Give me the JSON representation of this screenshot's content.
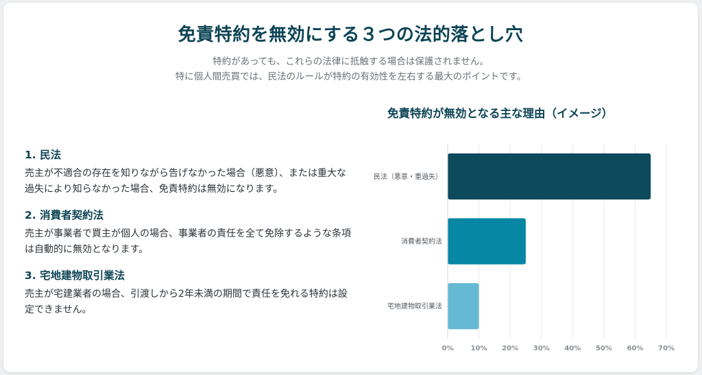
{
  "header": {
    "title": "免責特約を無効にする３つの法的落とし穴",
    "subtitle_line1": "特約があっても、これらの法律に抵触する場合は保護されません。",
    "subtitle_line2": "特に個人間売買では、民法のルールが特約の有効性を左右する最大のポイントです。"
  },
  "laws": [
    {
      "title": "1. 民法",
      "description": "売主が不適合の存在を知りながら告げなかった場合（悪意）、または重大な過失により知らなかった場合、免責特約は無効になります。"
    },
    {
      "title": "2. 消費者契約法",
      "description": "売主が事業者で買主が個人の場合、事業者の責任を全て免除するような条項は自動的に無効となります。"
    },
    {
      "title": "3. 宅地建物取引業法",
      "description": "売主が宅建業者の場合、引渡しから2年未満の期間で責任を免れる特約は設定できません。"
    }
  ],
  "chart_data": {
    "type": "bar",
    "orientation": "horizontal",
    "title": "免責特約が無効となる主な理由（イメージ）",
    "categories": [
      "民法（悪意・重過失）",
      "消費者契約法",
      "宅地建物取引業法"
    ],
    "values": [
      65,
      25,
      10
    ],
    "colors": [
      "#0d4a5b",
      "#0787a3",
      "#66b9d3"
    ],
    "xlim": [
      0,
      70
    ],
    "xticks": [
      0,
      10,
      20,
      30,
      40,
      50,
      60,
      70
    ],
    "tick_suffix": "%",
    "grid": true
  }
}
